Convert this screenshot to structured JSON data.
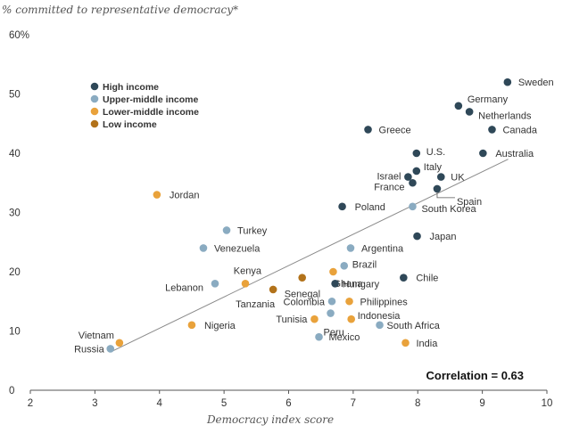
{
  "chart_data": {
    "type": "scatter",
    "ylabel": "% committed to representative democracy*",
    "xlabel": "Democracy index score",
    "xlim": [
      2,
      10
    ],
    "ylim": [
      0,
      60
    ],
    "x_ticks": [
      "2",
      "3",
      "4",
      "5",
      "6",
      "7",
      "8",
      "9",
      "10"
    ],
    "y_ticks": [
      "0",
      "10",
      "20",
      "30",
      "40",
      "50",
      "60%"
    ],
    "annotation": "Correlation = 0.63",
    "trendline": {
      "x": [
        3.25,
        9.4
      ],
      "y": [
        6.5,
        39
      ]
    },
    "legend": [
      {
        "key": "high",
        "label": "High income",
        "color": "#2f4858"
      },
      {
        "key": "upper",
        "label": "Upper-middle income",
        "color": "#8aabc1"
      },
      {
        "key": "lower",
        "label": "Lower-middle income",
        "color": "#e9a23b"
      },
      {
        "key": "low",
        "label": "Low income",
        "color": "#b2721a"
      }
    ],
    "points": [
      {
        "country": "Sweden",
        "x": 9.39,
        "y": 52,
        "group": "high",
        "anchor": "start",
        "dx": 12,
        "dy": 0
      },
      {
        "country": "Germany",
        "x": 8.63,
        "y": 48,
        "group": "high",
        "anchor": "start",
        "dx": 10,
        "dy": -8
      },
      {
        "country": "Netherlands",
        "x": 8.8,
        "y": 47,
        "group": "high",
        "anchor": "start",
        "dx": 10,
        "dy": 4
      },
      {
        "country": "Canada",
        "x": 9.15,
        "y": 44,
        "group": "high",
        "anchor": "start",
        "dx": 12,
        "dy": 0
      },
      {
        "country": "Greece",
        "x": 7.23,
        "y": 44,
        "group": "high",
        "anchor": "start",
        "dx": 12,
        "dy": 0
      },
      {
        "country": "U.S.",
        "x": 7.98,
        "y": 40,
        "group": "high",
        "anchor": "start",
        "dx": 11,
        "dy": -2
      },
      {
        "country": "Australia",
        "x": 9.01,
        "y": 40,
        "group": "high",
        "anchor": "start",
        "dx": 14,
        "dy": 0
      },
      {
        "country": "Italy",
        "x": 7.98,
        "y": 37,
        "group": "high",
        "anchor": "start",
        "dx": 8,
        "dy": -5
      },
      {
        "country": "Israel",
        "x": 7.85,
        "y": 36,
        "group": "high",
        "anchor": "end",
        "dx": -8,
        "dy": -1
      },
      {
        "country": "UK",
        "x": 8.36,
        "y": 36,
        "group": "high",
        "anchor": "start",
        "dx": 11,
        "dy": 0
      },
      {
        "country": "France",
        "x": 7.92,
        "y": 35,
        "group": "high",
        "anchor": "end",
        "dx": -9,
        "dy": 4
      },
      {
        "country": "Spain",
        "x": 8.3,
        "y": 34,
        "group": "high",
        "anchor": "start",
        "dx": 22,
        "dy": 14
      },
      {
        "country": "South Korea",
        "x": 7.92,
        "y": 31,
        "group": "upper",
        "anchor": "start",
        "dx": 10,
        "dy": 2
      },
      {
        "country": "Poland",
        "x": 6.83,
        "y": 31,
        "group": "high",
        "anchor": "start",
        "dx": 14,
        "dy": 0
      },
      {
        "country": "Jordan",
        "x": 3.96,
        "y": 33,
        "group": "lower",
        "anchor": "start",
        "dx": 14,
        "dy": 0
      },
      {
        "country": "Turkey",
        "x": 5.04,
        "y": 27,
        "group": "upper",
        "anchor": "start",
        "dx": 12,
        "dy": 0
      },
      {
        "country": "Japan",
        "x": 7.99,
        "y": 26,
        "group": "high",
        "anchor": "start",
        "dx": 14,
        "dy": 0
      },
      {
        "country": "Venezuela",
        "x": 4.68,
        "y": 24,
        "group": "upper",
        "anchor": "start",
        "dx": 12,
        "dy": 0
      },
      {
        "country": "Argentina",
        "x": 6.96,
        "y": 24,
        "group": "upper",
        "anchor": "start",
        "dx": 12,
        "dy": 0
      },
      {
        "country": "Brazil",
        "x": 6.86,
        "y": 21,
        "group": "upper",
        "anchor": "start",
        "dx": 9,
        "dy": -2
      },
      {
        "country": "Ghana",
        "x": 6.69,
        "y": 20,
        "group": "lower",
        "anchor": "start",
        "dx": 0,
        "dy": 13
      },
      {
        "country": "Kenya",
        "x": 5.33,
        "y": 18,
        "group": "lower",
        "anchor": "end",
        "dx": 18,
        "dy": -15
      },
      {
        "country": "Senegal",
        "x": 6.21,
        "y": 19,
        "group": "low",
        "anchor": "start",
        "dx": -20,
        "dy": 18
      },
      {
        "country": "Lebanon",
        "x": 4.86,
        "y": 18,
        "group": "upper",
        "anchor": "end",
        "dx": -13,
        "dy": 4
      },
      {
        "country": "Chile",
        "x": 7.78,
        "y": 19,
        "group": "high",
        "anchor": "start",
        "dx": 14,
        "dy": 0
      },
      {
        "country": "Hungary",
        "x": 6.72,
        "y": 18,
        "group": "high",
        "anchor": "start",
        "dx": 8,
        "dy": 0
      },
      {
        "country": "Tanzania",
        "x": 5.76,
        "y": 17,
        "group": "low",
        "anchor": "end",
        "dx": 2,
        "dy": 16
      },
      {
        "country": "Colombia",
        "x": 6.67,
        "y": 15,
        "group": "upper",
        "anchor": "end",
        "dx": -8,
        "dy": 0
      },
      {
        "country": "Philippines",
        "x": 6.94,
        "y": 15,
        "group": "lower",
        "anchor": "start",
        "dx": 12,
        "dy": 0
      },
      {
        "country": "Peru",
        "x": 6.65,
        "y": 13,
        "group": "upper",
        "anchor": "start",
        "dx": -8,
        "dy": 21
      },
      {
        "country": "Tunisia",
        "x": 6.4,
        "y": 12,
        "group": "lower",
        "anchor": "end",
        "dx": -8,
        "dy": 0
      },
      {
        "country": "Indonesia",
        "x": 6.97,
        "y": 12,
        "group": "lower",
        "anchor": "start",
        "dx": 7,
        "dy": -4
      },
      {
        "country": "South Africa",
        "x": 7.41,
        "y": 11,
        "group": "upper",
        "anchor": "start",
        "dx": 8,
        "dy": 0
      },
      {
        "country": "Nigeria",
        "x": 4.5,
        "y": 11,
        "group": "lower",
        "anchor": "start",
        "dx": 14,
        "dy": 0
      },
      {
        "country": "Mexico",
        "x": 6.47,
        "y": 9,
        "group": "upper",
        "anchor": "start",
        "dx": 11,
        "dy": 0
      },
      {
        "country": "Vietnam",
        "x": 3.38,
        "y": 8,
        "group": "lower",
        "anchor": "end",
        "dx": -6,
        "dy": -9
      },
      {
        "country": "India",
        "x": 7.81,
        "y": 8,
        "group": "lower",
        "anchor": "start",
        "dx": 12,
        "dy": 0
      },
      {
        "country": "Russia",
        "x": 3.24,
        "y": 7,
        "group": "upper",
        "anchor": "end",
        "dx": -7,
        "dy": 0
      }
    ]
  }
}
